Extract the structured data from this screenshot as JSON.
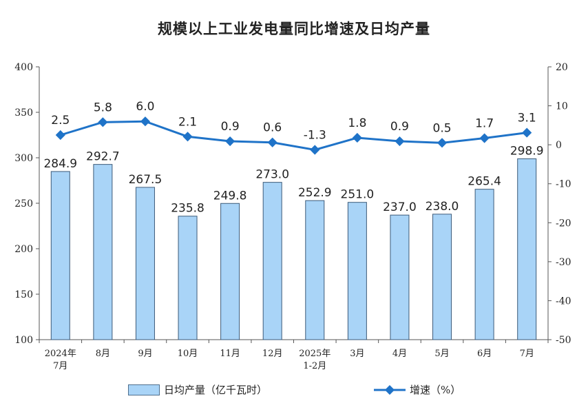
{
  "chart_data": {
    "type": "bar+line",
    "title": "规模以上工业发电量同比增速及日均产量",
    "categories": [
      [
        "2024年",
        "7月"
      ],
      [
        "8月"
      ],
      [
        "9月"
      ],
      [
        "10月"
      ],
      [
        "11月"
      ],
      [
        "12月"
      ],
      [
        "2025年",
        "1-2月"
      ],
      [
        "3月"
      ],
      [
        "4月"
      ],
      [
        "5月"
      ],
      [
        "6月"
      ],
      [
        "7月"
      ]
    ],
    "series": [
      {
        "name": "日均产量（亿千瓦时）",
        "type": "bar",
        "axis": "left",
        "values": [
          284.9,
          292.7,
          267.5,
          235.8,
          249.8,
          273.0,
          252.9,
          251.0,
          237.0,
          238.0,
          265.4,
          298.9
        ],
        "labels": [
          "284.9",
          "292.7",
          "267.5",
          "235.8",
          "249.8",
          "273.0",
          "252.9",
          "251.0",
          "237.0",
          "238.0",
          "265.4",
          "298.9"
        ],
        "color": "#a9d4f7",
        "edge_color": "#3c5a78"
      },
      {
        "name": "增速（%）",
        "type": "line",
        "axis": "right",
        "values": [
          2.5,
          5.8,
          6.0,
          2.1,
          0.9,
          0.6,
          -1.3,
          1.8,
          0.9,
          0.5,
          1.7,
          3.1
        ],
        "labels": [
          "2.5",
          "5.8",
          "6.0",
          "2.1",
          "0.9",
          "0.6",
          "-1.3",
          "1.8",
          "0.9",
          "0.5",
          "1.7",
          "3.1"
        ],
        "color": "#1f73c8"
      }
    ],
    "y_left": {
      "min": 100,
      "max": 400,
      "ticks": [
        "100",
        "150",
        "200",
        "250",
        "300",
        "350",
        "400"
      ]
    },
    "y_right": {
      "min": -50,
      "max": 20,
      "ticks": [
        "-50",
        "-40",
        "-30",
        "-20",
        "-10",
        "0",
        "10",
        "20"
      ]
    },
    "legend": {
      "placement": "bottom",
      "bar_label": "日均产量（亿千瓦时）",
      "line_label": "增速（%）"
    }
  }
}
